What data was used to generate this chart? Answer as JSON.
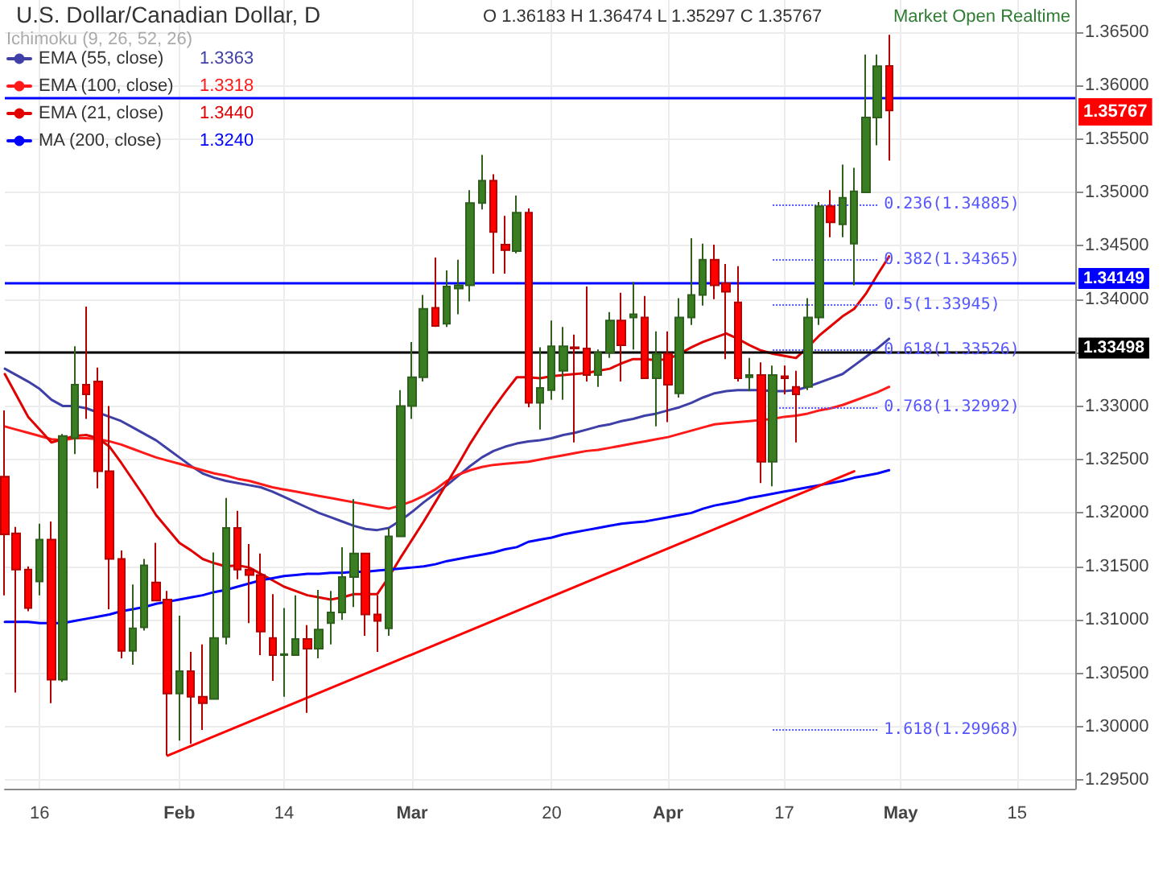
{
  "chart_data": {
    "type": "candlestick",
    "title": "U.S. Dollar/Canadian Dollar, D",
    "annotations": [
      "O 1.36183 H 1.36474 L 1.35297 C 1.35767",
      "Ichimoku (9, 26, 52, 26)",
      "Market Open Realtime",
      "1.3363",
      "1.3318",
      "1.3440",
      "1.3240",
      "1.35767"
    ],
    "categories": [
      null,
      null,
      null,
      "16",
      null,
      null,
      null,
      null,
      null,
      null,
      null,
      null,
      null,
      null,
      null,
      "Feb",
      null,
      null,
      null,
      null,
      null,
      null,
      null,
      null,
      "14",
      null,
      null,
      null,
      null,
      null,
      null,
      null,
      null,
      null,
      null,
      "Mar",
      null,
      null,
      null,
      null,
      null,
      null,
      null,
      null,
      null,
      null,
      null,
      "20",
      null,
      null,
      null,
      null,
      null,
      null,
      null,
      null,
      null,
      "Apr",
      null,
      null,
      null,
      null,
      null,
      null,
      null,
      null,
      null,
      "17",
      null,
      null,
      null,
      null,
      null,
      null,
      null,
      null,
      null,
      "May",
      null,
      null,
      null,
      null,
      null,
      null,
      null,
      null,
      null,
      "15",
      null,
      null,
      null,
      null,
      null
    ],
    "ohlc": [
      [
        1.3234,
        1.3296,
        1.3123,
        1.318
      ],
      [
        1.3181,
        1.3187,
        1.3032,
        1.3147
      ],
      [
        1.3147,
        1.315,
        1.3108,
        1.3111
      ],
      [
        1.3136,
        1.319,
        1.3123,
        1.3175
      ],
      [
        1.3175,
        1.3192,
        1.3022,
        1.3044
      ],
      [
        1.3044,
        1.3274,
        1.3042,
        1.3272
      ],
      [
        1.327,
        1.3356,
        1.3255,
        1.332
      ],
      [
        1.332,
        1.3393,
        1.3288,
        1.3311
      ],
      [
        1.3323,
        1.3336,
        1.3223,
        1.3239
      ],
      [
        1.3239,
        1.33,
        1.311,
        1.3157
      ],
      [
        1.3157,
        1.3165,
        1.3064,
        1.3071
      ],
      [
        1.3071,
        1.3133,
        1.3058,
        1.3092
      ],
      [
        1.3093,
        1.3157,
        1.309,
        1.3151
      ],
      [
        1.3135,
        1.3172,
        1.3118,
        1.3118
      ],
      [
        1.3119,
        1.3127,
        1.2973,
        1.3031
      ],
      [
        1.3031,
        1.3104,
        1.2987,
        1.3052
      ],
      [
        1.3052,
        1.307,
        1.2984,
        1.3028
      ],
      [
        1.3028,
        1.3077,
        1.2997,
        1.3022
      ],
      [
        1.3026,
        1.3163,
        1.3026,
        1.3083
      ],
      [
        1.3084,
        1.3214,
        1.3077,
        1.3186
      ],
      [
        1.3186,
        1.3202,
        1.3138,
        1.3147
      ],
      [
        1.3147,
        1.3171,
        1.3097,
        1.3142
      ],
      [
        1.3142,
        1.3162,
        1.3067,
        1.3089
      ],
      [
        1.3083,
        1.3124,
        1.3043,
        1.3067
      ],
      [
        1.3067,
        1.3111,
        1.3028,
        1.3068
      ],
      [
        1.3067,
        1.3123,
        1.3067,
        1.3082
      ],
      [
        1.3082,
        1.3095,
        1.3013,
        1.3073
      ],
      [
        1.3073,
        1.3128,
        1.3064,
        1.3091
      ],
      [
        1.3097,
        1.3127,
        1.3077,
        1.3107
      ],
      [
        1.3107,
        1.3168,
        1.31,
        1.314
      ],
      [
        1.314,
        1.3213,
        1.3112,
        1.3162
      ],
      [
        1.3162,
        1.3162,
        1.3085,
        1.3105
      ],
      [
        1.3105,
        1.3123,
        1.307,
        1.3099
      ],
      [
        1.3092,
        1.3186,
        1.3085,
        1.3178
      ],
      [
        1.3178,
        1.3315,
        1.3178,
        1.33
      ],
      [
        1.33,
        1.336,
        1.3288,
        1.3327
      ],
      [
        1.3327,
        1.3404,
        1.3323,
        1.3391
      ],
      [
        1.3392,
        1.3439,
        1.3374,
        1.3375
      ],
      [
        1.3377,
        1.3427,
        1.3374,
        1.3412
      ],
      [
        1.341,
        1.3437,
        1.3386,
        1.3413
      ],
      [
        1.3413,
        1.3502,
        1.3398,
        1.349
      ],
      [
        1.349,
        1.3535,
        1.3484,
        1.3511
      ],
      [
        1.3511,
        1.3517,
        1.3424,
        1.3463
      ],
      [
        1.3451,
        1.3478,
        1.3424,
        1.3446
      ],
      [
        1.3445,
        1.3497,
        1.3443,
        1.3481
      ],
      [
        1.3481,
        1.3485,
        1.3299,
        1.3303
      ],
      [
        1.3303,
        1.3355,
        1.3278,
        1.3317
      ],
      [
        1.3315,
        1.338,
        1.3306,
        1.3356
      ],
      [
        1.3333,
        1.3374,
        1.3306,
        1.3356
      ],
      [
        1.3355,
        1.3367,
        1.3266,
        1.3354
      ],
      [
        1.3354,
        1.3412,
        1.3323,
        1.3329
      ],
      [
        1.3329,
        1.3353,
        1.3318,
        1.335
      ],
      [
        1.335,
        1.3388,
        1.3345,
        1.338
      ],
      [
        1.338,
        1.3406,
        1.3323,
        1.3357
      ],
      [
        1.3383,
        1.3416,
        1.3353,
        1.3386
      ],
      [
        1.3383,
        1.3403,
        1.3326,
        1.3326
      ],
      [
        1.3326,
        1.337,
        1.3281,
        1.3349
      ],
      [
        1.3349,
        1.337,
        1.3285,
        1.332
      ],
      [
        1.3312,
        1.3401,
        1.3308,
        1.3383
      ],
      [
        1.3383,
        1.3457,
        1.3376,
        1.3404
      ],
      [
        1.3404,
        1.3452,
        1.3394,
        1.3437
      ],
      [
        1.3437,
        1.3451,
        1.34,
        1.3413
      ],
      [
        1.3415,
        1.3433,
        1.3344,
        1.3407
      ],
      [
        1.3397,
        1.3431,
        1.3323,
        1.3326
      ],
      [
        1.3327,
        1.3345,
        1.3314,
        1.3329
      ],
      [
        1.3329,
        1.3341,
        1.3228,
        1.3248
      ],
      [
        1.3248,
        1.3338,
        1.3225,
        1.3329
      ],
      [
        1.3328,
        1.3338,
        1.3311,
        1.3326
      ],
      [
        1.3318,
        1.3333,
        1.3266,
        1.3311
      ],
      [
        1.3318,
        1.3401,
        1.3315,
        1.3383
      ],
      [
        1.3383,
        1.3491,
        1.3376,
        1.3487
      ],
      [
        1.3487,
        1.3502,
        1.3458,
        1.3472
      ],
      [
        1.347,
        1.3526,
        1.3458,
        1.3495
      ],
      [
        1.3452,
        1.3523,
        1.3413,
        1.3501
      ],
      [
        1.35,
        1.3629,
        1.35,
        1.357
      ],
      [
        1.357,
        1.3629,
        1.3544,
        1.3618
      ],
      [
        1.36183,
        1.36474,
        1.35297,
        1.35767
      ],
      null,
      null,
      null,
      null,
      null,
      null,
      null,
      null,
      null,
      null,
      null,
      null,
      null,
      null,
      null,
      null
    ],
    "series": [
      {
        "type": "line",
        "name": "EMA (55, close)",
        "color": "#3f3fa8",
        "values": [
          1.3335,
          1.3329,
          1.3323,
          1.3316,
          1.3306,
          1.33,
          1.33,
          1.3298,
          1.3294,
          1.329,
          1.3286,
          1.328,
          1.3274,
          1.3268,
          1.326,
          1.3252,
          1.3244,
          1.3237,
          1.3233,
          1.323,
          1.3228,
          1.3226,
          1.3224,
          1.322,
          1.3215,
          1.321,
          1.3205,
          1.32,
          1.3196,
          1.3192,
          1.3188,
          1.3185,
          1.3184,
          1.3186,
          1.3193,
          1.3201,
          1.321,
          1.3218,
          1.3226,
          1.3235,
          1.3244,
          1.3252,
          1.3258,
          1.3262,
          1.3265,
          1.3267,
          1.3268,
          1.327,
          1.3273,
          1.3275,
          1.3278,
          1.3281,
          1.3283,
          1.3286,
          1.3288,
          1.3291,
          1.3293,
          1.3296,
          1.3299,
          1.3303,
          1.3308,
          1.3312,
          1.3314,
          1.3315,
          1.3315,
          1.3315,
          1.3314,
          1.3314,
          1.3315,
          1.3318,
          1.3322,
          1.3326,
          1.333,
          1.3338,
          1.3346,
          1.3354,
          1.3363,
          null,
          null,
          null,
          null,
          null,
          null,
          null,
          null,
          null,
          null,
          null,
          null,
          null,
          null,
          null,
          null
        ]
      },
      {
        "type": "line",
        "name": "EMA (100, close)",
        "color": "#ff1a1a",
        "values": [
          1.3281,
          1.3278,
          1.3275,
          1.3272,
          1.3269,
          1.3268,
          1.327,
          1.327,
          1.3269,
          1.3267,
          1.3264,
          1.326,
          1.3256,
          1.3252,
          1.3249,
          1.3246,
          1.3243,
          1.324,
          1.3237,
          1.3235,
          1.3232,
          1.323,
          1.3227,
          1.3224,
          1.3222,
          1.322,
          1.3218,
          1.3216,
          1.3214,
          1.3212,
          1.321,
          1.3208,
          1.3206,
          1.3204,
          1.3207,
          1.3211,
          1.3216,
          1.3222,
          1.323,
          1.3236,
          1.324,
          1.3243,
          1.3245,
          1.3246,
          1.3247,
          1.3248,
          1.325,
          1.3252,
          1.3254,
          1.3256,
          1.3258,
          1.3259,
          1.3261,
          1.3263,
          1.3265,
          1.3267,
          1.3269,
          1.3271,
          1.3274,
          1.3277,
          1.328,
          1.3283,
          1.3284,
          1.3285,
          1.3286,
          1.3287,
          1.3288,
          1.329,
          1.3291,
          1.3293,
          1.3296,
          1.3298,
          1.3301,
          1.3305,
          1.3309,
          1.3313,
          1.3318,
          null,
          null,
          null,
          null,
          null,
          null,
          null,
          null,
          null,
          null,
          null,
          null,
          null,
          null,
          null,
          null
        ]
      },
      {
        "type": "line",
        "name": "EMA (21, close)",
        "color": "#e00000",
        "values": [
          1.333,
          1.331,
          1.329,
          1.3278,
          1.3266,
          1.3269,
          1.3272,
          1.3273,
          1.327,
          1.3262,
          1.3247,
          1.3231,
          1.3215,
          1.3198,
          1.3185,
          1.3172,
          1.3165,
          1.3157,
          1.3153,
          1.315,
          1.3151,
          1.3149,
          1.3143,
          1.3137,
          1.3131,
          1.3127,
          1.3123,
          1.3121,
          1.3119,
          1.3121,
          1.3124,
          1.3124,
          1.3124,
          1.314,
          1.3158,
          1.3175,
          1.3192,
          1.321,
          1.3228,
          1.3246,
          1.3265,
          1.3282,
          1.3298,
          1.3313,
          1.3327,
          1.3327,
          1.3326,
          1.3328,
          1.3329,
          1.333,
          1.3331,
          1.3333,
          1.3335,
          1.334,
          1.3344,
          1.3344,
          1.3343,
          1.3344,
          1.3349,
          1.3355,
          1.336,
          1.3364,
          1.3368,
          1.3363,
          1.3357,
          1.3352,
          1.3349,
          1.3347,
          1.3345,
          1.3355,
          1.3366,
          1.3375,
          1.3384,
          1.3391,
          1.3405,
          1.3423,
          1.344,
          null,
          null,
          null,
          null,
          null,
          null,
          null,
          null,
          null,
          null,
          null,
          null,
          null,
          null,
          null,
          null
        ]
      },
      {
        "type": "line",
        "name": "MA (200, close)",
        "color": "#0000ff",
        "values": [
          1.3098,
          1.3098,
          1.3098,
          1.3097,
          1.3097,
          1.3097,
          1.3099,
          1.3101,
          1.3103,
          1.3105,
          1.3108,
          1.311,
          1.3112,
          1.3115,
          1.3117,
          1.3119,
          1.3121,
          1.3123,
          1.3126,
          1.3128,
          1.3131,
          1.3134,
          1.3137,
          1.3139,
          1.3141,
          1.3142,
          1.3143,
          1.3143,
          1.3144,
          1.3144,
          1.3145,
          1.3145,
          1.3146,
          1.3147,
          1.3148,
          1.3149,
          1.315,
          1.3152,
          1.3155,
          1.3157,
          1.3159,
          1.3161,
          1.3163,
          1.3166,
          1.3168,
          1.3173,
          1.3175,
          1.3177,
          1.318,
          1.3182,
          1.3184,
          1.3186,
          1.3188,
          1.319,
          1.3191,
          1.3192,
          1.3194,
          1.3196,
          1.3198,
          1.32,
          1.3204,
          1.3207,
          1.3209,
          1.3211,
          1.3214,
          1.3216,
          1.3218,
          1.322,
          1.3222,
          1.3224,
          1.3226,
          1.3228,
          1.323,
          1.3233,
          1.3235,
          1.3237,
          1.324,
          null,
          null,
          null,
          null,
          null,
          null,
          null,
          null,
          null,
          null,
          null,
          null,
          null,
          null,
          null,
          null
        ]
      },
      {
        "type": "line",
        "color": "#ff0000",
        "values": [
          null,
          null,
          null,
          null,
          null,
          null,
          null,
          null,
          null,
          null,
          null,
          null,
          null,
          null,
          1.2973,
          null,
          null,
          null,
          null,
          null,
          null,
          null,
          null,
          null,
          null,
          null,
          null,
          null,
          null,
          null,
          null,
          null,
          null,
          null,
          null,
          null,
          null,
          null,
          null,
          null,
          null,
          null,
          null,
          null,
          null,
          null,
          null,
          null,
          null,
          null,
          null,
          null,
          null,
          null,
          null,
          null,
          null,
          null,
          null,
          null,
          null,
          null,
          null,
          null,
          null,
          null,
          null,
          null,
          null,
          null,
          null,
          null,
          null,
          1.3239,
          null,
          null,
          null,
          null,
          null,
          null,
          null,
          null,
          null,
          null,
          null,
          null,
          null,
          null,
          null,
          null,
          null,
          null,
          null
        ]
      }
    ],
    "ref_lines": [
      {
        "axis": "y",
        "value": 1.3588,
        "color": "#0000ff"
      },
      {
        "axis": "y",
        "value": 1.34149,
        "label": "1.34149",
        "color": "#0000ff"
      },
      {
        "axis": "y",
        "value": 1.33498,
        "label": "1.33498",
        "color": "#000000"
      },
      {
        "axis": "y",
        "value": 1.34885,
        "label": "0.236(1.34885)",
        "color": "#5555ff",
        "line_style": "dotted"
      },
      {
        "axis": "y",
        "value": 1.34365,
        "label": "0.382(1.34365)",
        "color": "#5555ff",
        "line_style": "dotted"
      },
      {
        "axis": "y",
        "value": 1.33945,
        "label": "0.5(1.33945)",
        "color": "#5555ff",
        "line_style": "dotted"
      },
      {
        "axis": "y",
        "value": 1.33526,
        "label": "0.618(1.33526)",
        "color": "#5555ff",
        "line_style": "dotted"
      },
      {
        "axis": "y",
        "value": 1.32992,
        "label": "0.768(1.32992)",
        "color": "#5555ff",
        "line_style": "dotted"
      },
      {
        "axis": "y",
        "value": 1.29968,
        "label": "1.618(1.29968)",
        "color": "#5555ff",
        "line_style": "dotted"
      }
    ],
    "ylim": [
      1.2942,
      1.368
    ],
    "yticks": [
      {
        "value": 1.295,
        "label": "1.29500"
      },
      {
        "value": 1.3,
        "label": "1.30000"
      },
      {
        "value": 1.305,
        "label": "1.30500"
      },
      {
        "value": 1.31,
        "label": "1.31000"
      },
      {
        "value": 1.315,
        "label": "1.31500"
      },
      {
        "value": 1.32,
        "label": "1.32000"
      },
      {
        "value": 1.325,
        "label": "1.32500"
      },
      {
        "value": 1.33,
        "label": "1.33000"
      },
      {
        "value": 1.335,
        "label": null
      },
      {
        "value": 1.34,
        "label": "1.34000"
      },
      {
        "value": 1.345,
        "label": "1.34500"
      },
      {
        "value": 1.35,
        "label": "1.35000"
      },
      {
        "value": 1.355,
        "label": "1.35500"
      },
      {
        "value": 1.36,
        "label": "1.36000"
      },
      {
        "value": 1.365,
        "label": "1.36500"
      }
    ],
    "grid": true,
    "legend": "top left",
    "marker": "none"
  }
}
